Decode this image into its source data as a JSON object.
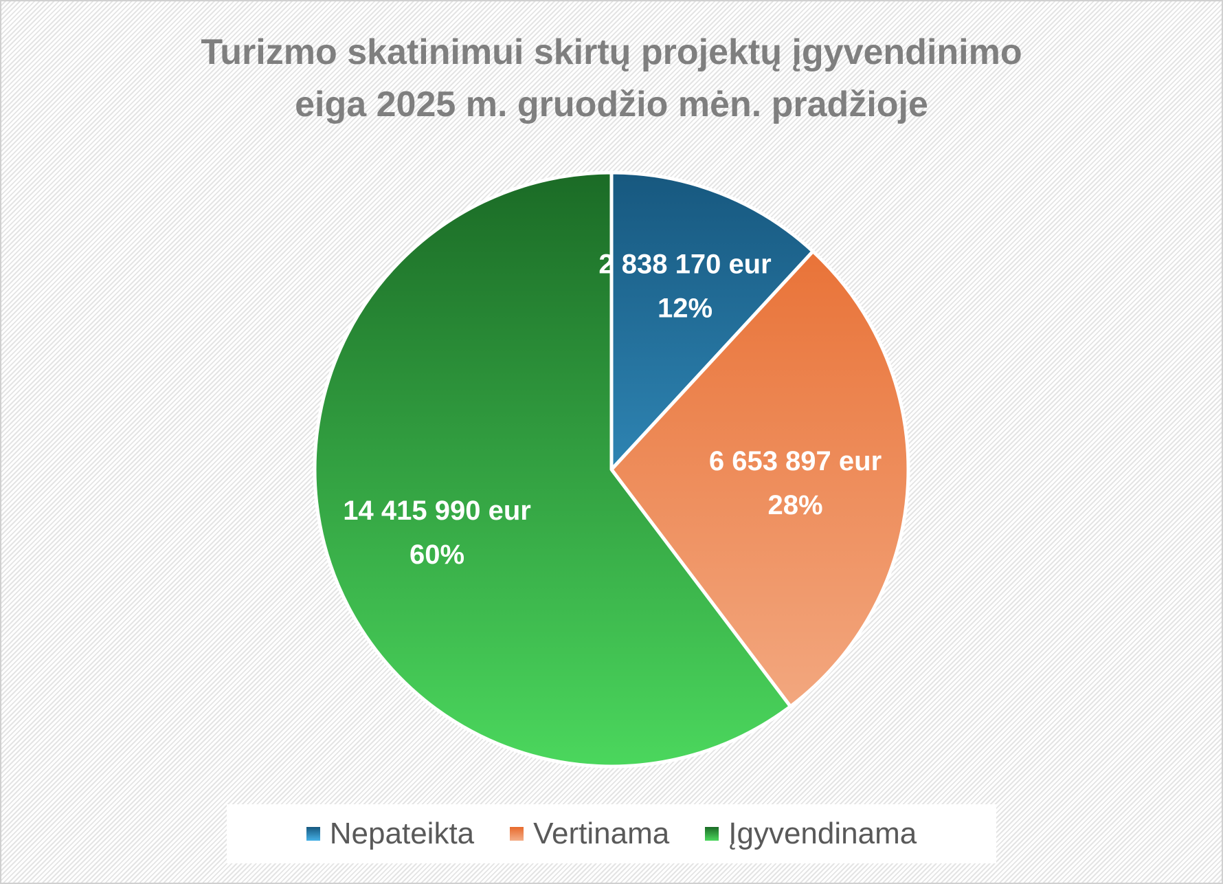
{
  "chart_data": {
    "type": "pie",
    "title": "Turizmo skatinimui skirtų projektų įgyvendinimo eiga 2025 m. gruodžio mėn. pradžioje",
    "title_lines": [
      "Turizmo skatinimui skirtų projektų įgyvendinimo",
      "eiga 2025 m. gruodžio mėn. pradžioje"
    ],
    "start_angle_deg": 0,
    "direction": "clockwise",
    "legend_position": "bottom",
    "slices": [
      {
        "name": "Nepateikta",
        "value": 2838170,
        "value_label": "2 838 170 eur",
        "percent_label": "12%",
        "color": "#2e8bbd",
        "color_dark": "#17587f",
        "color_light": "#45b0e6"
      },
      {
        "name": "Vertinama",
        "value": 6653897,
        "value_label": "6 653 897 eur",
        "percent_label": "28%",
        "color": "#ed8a5c",
        "color_dark": "#e76a2c",
        "color_light": "#f4ae88"
      },
      {
        "name": "Įgyvendinama",
        "value": 14415990,
        "value_label": "14 415 990 eur",
        "percent_label": "60%",
        "color": "#33a64a",
        "color_dark": "#1b6b26",
        "color_light": "#4bd75d"
      }
    ]
  }
}
